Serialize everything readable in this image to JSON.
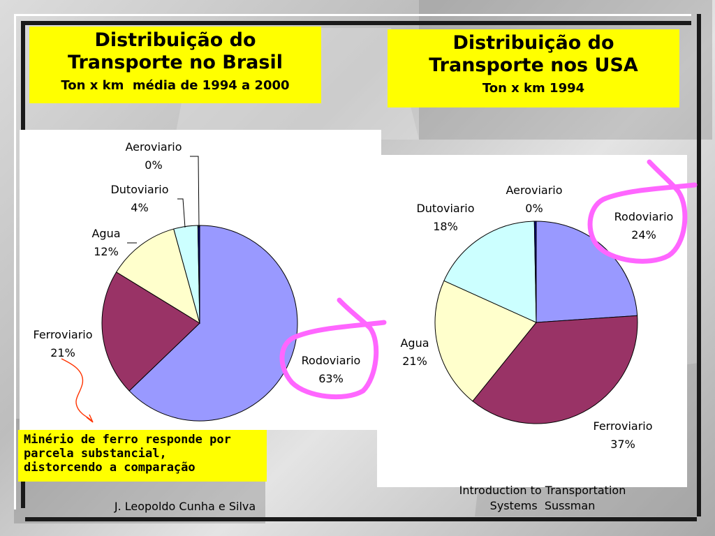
{
  "titles": {
    "brasil_title_line1": "Distribuição do",
    "brasil_title_line2": "Transporte no Brasil",
    "brasil_subtitle": "Ton x km  média de 1994 a 2000",
    "usa_title_line1": "Distribuição do",
    "usa_title_line2": "Transporte nos USA",
    "usa_subtitle": "Ton x km 1994"
  },
  "note": {
    "line1": "Minério de ferro responde por",
    "line2": "parcela substancial,",
    "line3": "distorcendo a comparação"
  },
  "footer": {
    "author": "J. Leopoldo Cunha e Silva",
    "course_line1": "Introduction to Transportation",
    "course_line2": "Systems  Sussman"
  },
  "colors": {
    "rodoviario": "#9999ff",
    "ferroviario": "#993366",
    "agua": "#ffffcc",
    "dutoviario": "#ccffff",
    "aeroviario": "#000080",
    "highlight": "#ff66ff",
    "title_bg": "#ffff00",
    "arrow": "#ff3300"
  },
  "chart_data": [
    {
      "type": "pie",
      "title": "Distribuição do Transporte no Brasil",
      "subtitle": "Ton x km  média de 1994 a 2000",
      "slices": [
        {
          "name": "Rodoviario",
          "value": 63,
          "label": "63%"
        },
        {
          "name": "Ferroviario",
          "value": 21,
          "label": "21%"
        },
        {
          "name": "Agua",
          "value": 12,
          "label": "12%"
        },
        {
          "name": "Dutoviario",
          "value": 4,
          "label": "4%"
        },
        {
          "name": "Aeroviario",
          "value": 0.3,
          "label": "0%"
        }
      ]
    },
    {
      "type": "pie",
      "title": "Distribuição do Transporte nos USA",
      "subtitle": "Ton x km 1994",
      "slices": [
        {
          "name": "Rodoviario",
          "value": 24,
          "label": "24%"
        },
        {
          "name": "Ferroviario",
          "value": 37,
          "label": "37%"
        },
        {
          "name": "Agua",
          "value": 21,
          "label": "21%"
        },
        {
          "name": "Dutoviario",
          "value": 18,
          "label": "18%"
        },
        {
          "name": "Aeroviario",
          "value": 0.3,
          "label": "0%"
        }
      ]
    }
  ]
}
